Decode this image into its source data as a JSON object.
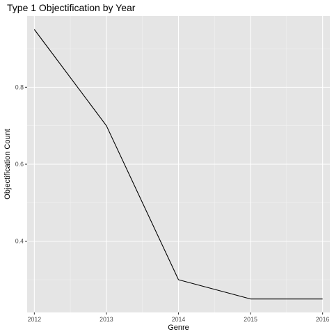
{
  "chart_data": {
    "type": "line",
    "title": "Type 1 Objectification by Year",
    "xlabel": "Genre",
    "ylabel": "Objectification Count",
    "x": [
      2012,
      2013,
      2014,
      2015,
      2016
    ],
    "x_tick_labels": [
      "2012",
      "2013",
      "2014",
      "2015",
      "2016"
    ],
    "series": [
      {
        "values": [
          0.95,
          0.7,
          0.3,
          0.25,
          0.25
        ]
      }
    ],
    "xlim": [
      2011.9,
      2016.1
    ],
    "ylim": [
      0.215,
      0.985
    ],
    "y_ticks": [
      0.4,
      0.6,
      0.8
    ],
    "y_tick_labels": [
      "0.4",
      "0.6",
      "0.8"
    ],
    "grid": true,
    "colors": {
      "panel_background": "#e5e5e5",
      "grid_major": "#ffffff",
      "grid_minor": "#f2f2f2",
      "line": "#000000"
    }
  }
}
